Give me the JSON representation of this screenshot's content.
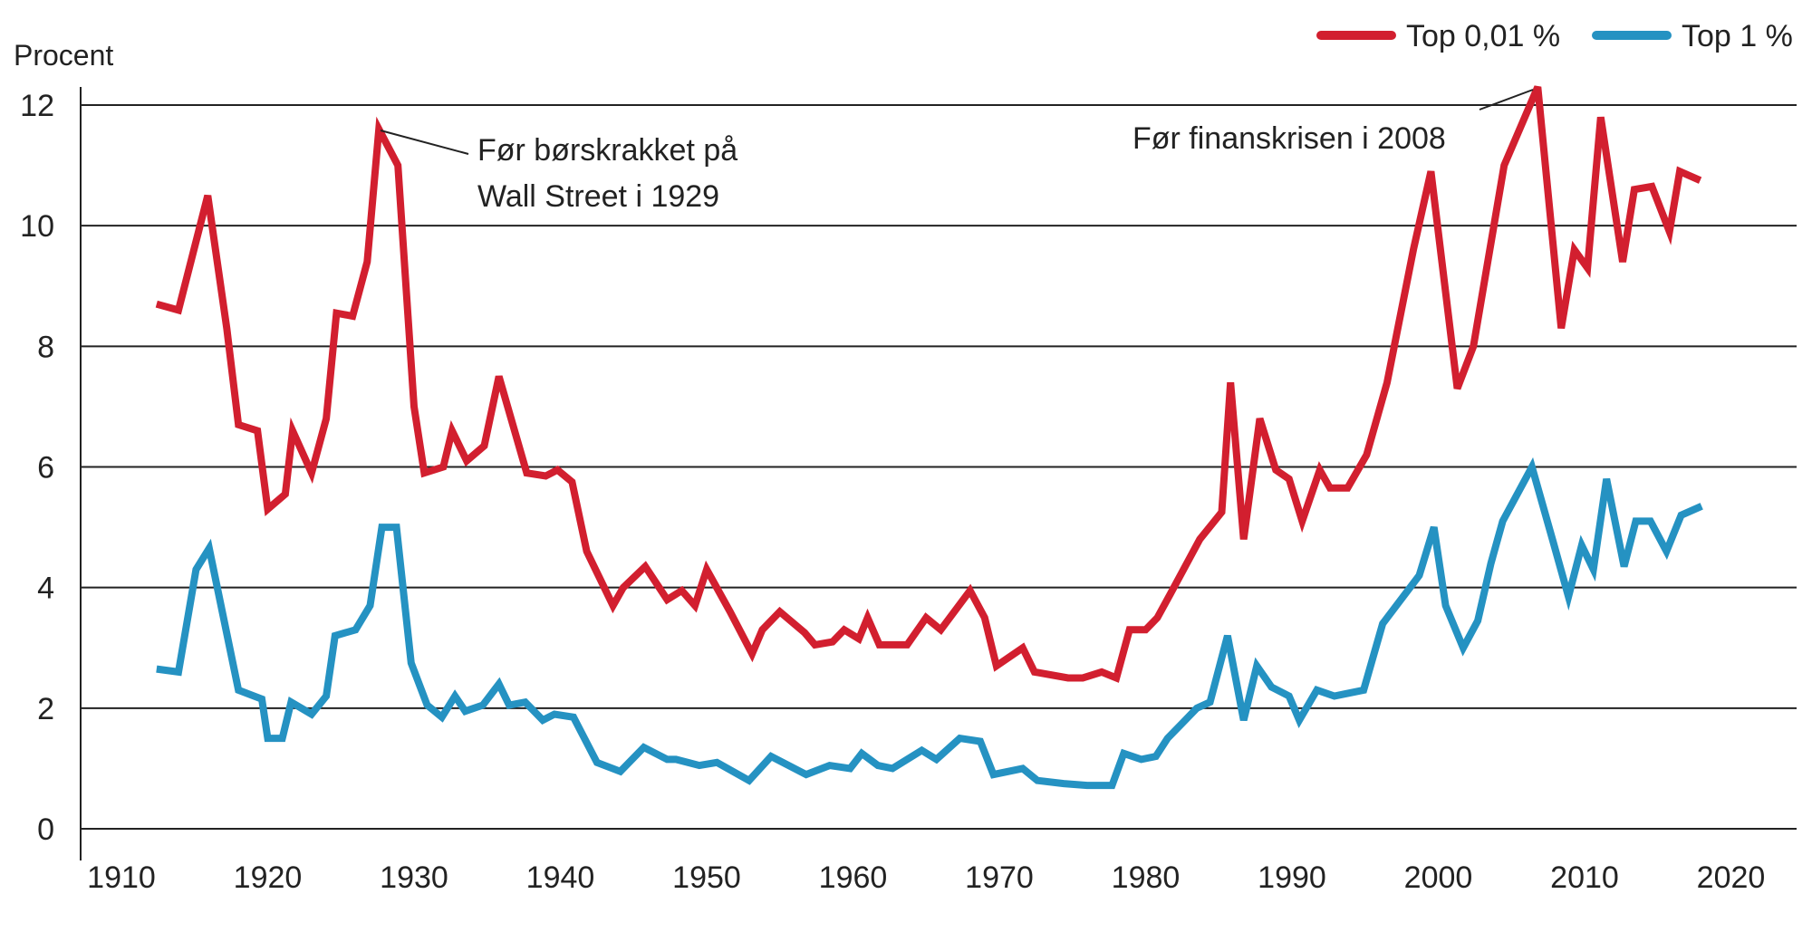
{
  "chart_data": {
    "type": "line",
    "title": "",
    "ylabel": "Procent",
    "xlabel": "",
    "xlim": [
      1907,
      2023
    ],
    "ylim": [
      0,
      12
    ],
    "x_ticks": [
      "1910",
      "1920",
      "1930",
      "1940",
      "1950",
      "1960",
      "1970",
      "1980",
      "1990",
      "2000",
      "2010",
      "2020"
    ],
    "y_ticks": [
      "0",
      "2",
      "4",
      "6",
      "8",
      "10",
      "12"
    ],
    "grid": "horizontal",
    "legend_position": "top-right",
    "series": [
      {
        "name": "Top 0,01 %",
        "color": "#d21f2f",
        "points": [
          [
            1912.4,
            8.7
          ],
          [
            1913.9,
            8.6
          ],
          [
            1915.9,
            10.5
          ],
          [
            1917.2,
            8.3
          ],
          [
            1918,
            6.7
          ],
          [
            1919.3,
            6.6
          ],
          [
            1920,
            5.3
          ],
          [
            1921.2,
            5.55
          ],
          [
            1921.7,
            6.6
          ],
          [
            1923,
            5.9
          ],
          [
            1924,
            6.8
          ],
          [
            1924.7,
            8.55
          ],
          [
            1925.8,
            8.5
          ],
          [
            1926.8,
            9.4
          ],
          [
            1927.6,
            11.6
          ],
          [
            1928.9,
            11.0
          ],
          [
            1930,
            7.0
          ],
          [
            1930.7,
            5.9
          ],
          [
            1932,
            6.0
          ],
          [
            1932.6,
            6.6
          ],
          [
            1933.6,
            6.1
          ],
          [
            1934.8,
            6.35
          ],
          [
            1935.8,
            7.5
          ],
          [
            1937.7,
            5.9
          ],
          [
            1939,
            5.85
          ],
          [
            1939.8,
            5.95
          ],
          [
            1940.8,
            5.75
          ],
          [
            1941.8,
            4.6
          ],
          [
            1943.6,
            3.7
          ],
          [
            1944.3,
            4.0
          ],
          [
            1945.8,
            4.35
          ],
          [
            1947.3,
            3.8
          ],
          [
            1948.3,
            3.95
          ],
          [
            1949.2,
            3.7
          ],
          [
            1950,
            4.3
          ],
          [
            1951.6,
            3.6
          ],
          [
            1953.1,
            2.9
          ],
          [
            1953.8,
            3.3
          ],
          [
            1955,
            3.6
          ],
          [
            1956.7,
            3.25
          ],
          [
            1957.4,
            3.05
          ],
          [
            1958.6,
            3.1
          ],
          [
            1959.4,
            3.3
          ],
          [
            1960.4,
            3.15
          ],
          [
            1961,
            3.5
          ],
          [
            1961.8,
            3.05
          ],
          [
            1963.7,
            3.05
          ],
          [
            1965,
            3.5
          ],
          [
            1966,
            3.3
          ],
          [
            1968,
            3.95
          ],
          [
            1969,
            3.5
          ],
          [
            1969.8,
            2.7
          ],
          [
            1971.6,
            3.0
          ],
          [
            1972.4,
            2.6
          ],
          [
            1974.7,
            2.5
          ],
          [
            1975.7,
            2.5
          ],
          [
            1977,
            2.6
          ],
          [
            1978,
            2.5
          ],
          [
            1978.9,
            3.3
          ],
          [
            1980,
            3.3
          ],
          [
            1980.8,
            3.5
          ],
          [
            1981.7,
            3.9
          ],
          [
            1983.7,
            4.8
          ],
          [
            1985.2,
            5.25
          ],
          [
            1985.8,
            7.4
          ],
          [
            1986.7,
            4.8
          ],
          [
            1987.8,
            6.8
          ],
          [
            1988.9,
            5.95
          ],
          [
            1989.8,
            5.8
          ],
          [
            1990.7,
            5.1
          ],
          [
            1991.9,
            5.95
          ],
          [
            1992.6,
            5.65
          ],
          [
            1993.8,
            5.65
          ],
          [
            1995.1,
            6.2
          ],
          [
            1996.5,
            7.4
          ],
          [
            1998.3,
            9.6
          ],
          [
            1999.5,
            10.9
          ],
          [
            2001.3,
            7.3
          ],
          [
            2002.4,
            8.0
          ],
          [
            2004.5,
            11.0
          ],
          [
            2006.8,
            12.3
          ],
          [
            2008.4,
            8.3
          ],
          [
            2009.3,
            9.6
          ],
          [
            2010.2,
            9.3
          ],
          [
            2011.1,
            11.8
          ],
          [
            2012.6,
            9.4
          ],
          [
            2013.4,
            10.6
          ],
          [
            2014.6,
            10.65
          ],
          [
            2015.8,
            9.9
          ],
          [
            2016.5,
            10.9
          ],
          [
            2017.9,
            10.75
          ]
        ]
      },
      {
        "name": "Top 1 %",
        "color": "#2592c2",
        "points": [
          [
            1912.4,
            2.65
          ],
          [
            1913.9,
            2.6
          ],
          [
            1915.1,
            4.3
          ],
          [
            1916,
            4.65
          ],
          [
            1918,
            2.3
          ],
          [
            1919.6,
            2.15
          ],
          [
            1920,
            1.5
          ],
          [
            1921,
            1.5
          ],
          [
            1921.6,
            2.1
          ],
          [
            1923,
            1.9
          ],
          [
            1924,
            2.2
          ],
          [
            1924.6,
            3.2
          ],
          [
            1926,
            3.3
          ],
          [
            1927,
            3.7
          ],
          [
            1927.8,
            5.0
          ],
          [
            1928.8,
            5.0
          ],
          [
            1929.8,
            2.75
          ],
          [
            1930.9,
            2.05
          ],
          [
            1931.9,
            1.85
          ],
          [
            1932.8,
            2.2
          ],
          [
            1933.5,
            1.95
          ],
          [
            1934.7,
            2.05
          ],
          [
            1935.8,
            2.4
          ],
          [
            1936.5,
            2.05
          ],
          [
            1937.6,
            2.1
          ],
          [
            1938.8,
            1.8
          ],
          [
            1939.6,
            1.9
          ],
          [
            1940.9,
            1.85
          ],
          [
            1942.5,
            1.1
          ],
          [
            1944.1,
            0.95
          ],
          [
            1945.7,
            1.35
          ],
          [
            1947.3,
            1.15
          ],
          [
            1947.9,
            1.15
          ],
          [
            1949.5,
            1.05
          ],
          [
            1950.7,
            1.1
          ],
          [
            1952.9,
            0.8
          ],
          [
            1954.4,
            1.2
          ],
          [
            1956.8,
            0.9
          ],
          [
            1958.4,
            1.05
          ],
          [
            1959.8,
            1.0
          ],
          [
            1960.6,
            1.25
          ],
          [
            1961.7,
            1.05
          ],
          [
            1962.7,
            1.0
          ],
          [
            1964.7,
            1.3
          ],
          [
            1965.7,
            1.15
          ],
          [
            1967.3,
            1.5
          ],
          [
            1968.7,
            1.45
          ],
          [
            1969.6,
            0.9
          ],
          [
            1971.6,
            1.0
          ],
          [
            1972.6,
            0.8
          ],
          [
            1974.4,
            0.75
          ],
          [
            1976,
            0.72
          ],
          [
            1977.7,
            0.72
          ],
          [
            1978.5,
            1.25
          ],
          [
            1979.7,
            1.15
          ],
          [
            1980.7,
            1.2
          ],
          [
            1981.5,
            1.5
          ],
          [
            1982.5,
            1.75
          ],
          [
            1983.5,
            2.0
          ],
          [
            1984.4,
            2.1
          ],
          [
            1985.6,
            3.2
          ],
          [
            1986.7,
            1.8
          ],
          [
            1987.6,
            2.7
          ],
          [
            1988.6,
            2.35
          ],
          [
            1989.8,
            2.2
          ],
          [
            1990.5,
            1.8
          ],
          [
            1991.7,
            2.3
          ],
          [
            1992.9,
            2.2
          ],
          [
            1994.9,
            2.3
          ],
          [
            1996.2,
            3.4
          ],
          [
            1998.7,
            4.2
          ],
          [
            1999.7,
            5.0
          ],
          [
            2000.5,
            3.7
          ],
          [
            2001.7,
            3.0
          ],
          [
            2002.7,
            3.45
          ],
          [
            2003.6,
            4.4
          ],
          [
            2004.4,
            5.1
          ],
          [
            2006.4,
            6.0
          ],
          [
            2007.8,
            4.8
          ],
          [
            2008.9,
            3.85
          ],
          [
            2009.8,
            4.7
          ],
          [
            2010.6,
            4.3
          ],
          [
            2011.5,
            5.8
          ],
          [
            2012.7,
            4.35
          ],
          [
            2013.5,
            5.1
          ],
          [
            2014.5,
            5.1
          ],
          [
            2015.6,
            4.6
          ],
          [
            2016.6,
            5.2
          ],
          [
            2018,
            5.35
          ]
        ]
      }
    ],
    "annotations": [
      {
        "lines": [
          "Før børskrakket på",
          "Wall Street i 1929"
        ],
        "x": 1927.6,
        "y": 11.6
      },
      {
        "lines": [
          "Før finanskrisen i 2008"
        ],
        "x": 2006.8,
        "y": 12.3
      }
    ]
  }
}
